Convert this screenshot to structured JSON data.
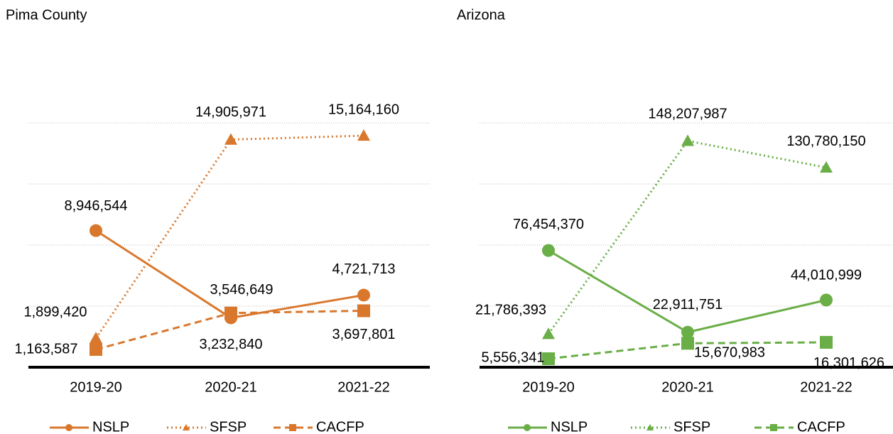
{
  "chart_data": [
    {
      "type": "line",
      "title": "Pima County",
      "categories": [
        "2019-20",
        "2020-21",
        "2021-22"
      ],
      "ylim": [
        0,
        16000000
      ],
      "yticks": [
        0,
        4000000,
        8000000,
        12000000,
        16000000
      ],
      "grid": true,
      "legend": "bottom",
      "series": [
        {
          "name": "NSLP",
          "color": "#d9782d",
          "dash": "solid",
          "marker": "circle",
          "values": [
            8946544,
            3232840,
            4721713
          ],
          "value_labels": [
            "8,946,544",
            "3,232,840",
            "4,721,713"
          ]
        },
        {
          "name": "SFSP",
          "color": "#d9782d",
          "dash": "dot",
          "marker": "triangle",
          "values": [
            1899420,
            14905971,
            15164160
          ],
          "value_labels": [
            "1,899,420",
            "14,905,971",
            "15,164,160"
          ]
        },
        {
          "name": "CACFP",
          "color": "#d9782d",
          "dash": "dash",
          "marker": "square",
          "values": [
            1163587,
            3546649,
            3697801
          ],
          "value_labels": [
            "1,163,587",
            "3,546,649",
            "3,697,801"
          ]
        }
      ]
    },
    {
      "type": "line",
      "title": "Arizona",
      "categories": [
        "2019-20",
        "2020-21",
        "2021-22"
      ],
      "ylim": [
        0,
        160000000
      ],
      "yticks": [
        0,
        40000000,
        80000000,
        120000000,
        160000000
      ],
      "grid": true,
      "legend": "bottom",
      "series": [
        {
          "name": "NSLP",
          "color": "#6aae47",
          "dash": "solid",
          "marker": "circle",
          "values": [
            76454370,
            22911751,
            44010999
          ],
          "value_labels": [
            "76,454,370",
            "22,911,751",
            "44,010,999"
          ]
        },
        {
          "name": "SFSP",
          "color": "#6aae47",
          "dash": "dot",
          "marker": "triangle",
          "values": [
            21786393,
            148207987,
            130780150
          ],
          "value_labels": [
            "21,786,393",
            "148,207,987",
            "130,780,150"
          ]
        },
        {
          "name": "CACFP",
          "color": "#6aae47",
          "dash": "dash",
          "marker": "square",
          "values": [
            5556341,
            15670983,
            16301626
          ],
          "value_labels": [
            "5,556,341",
            "15,670,983",
            "16,301,626"
          ]
        }
      ]
    }
  ]
}
